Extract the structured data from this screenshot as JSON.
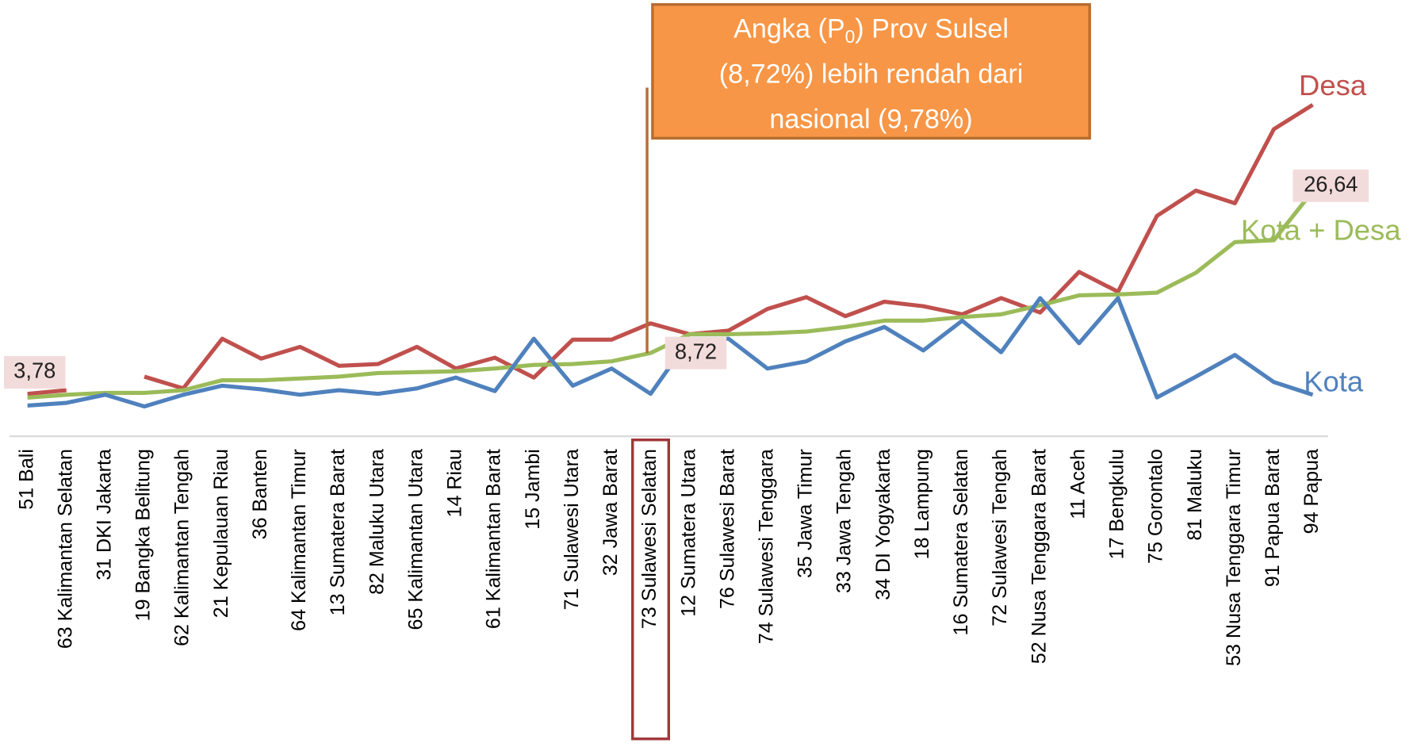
{
  "chart_data": {
    "type": "line",
    "categories": [
      "51 Bali",
      "63 Kalimantan Selatan",
      "31 DKI Jakarta",
      "19 Bangka Belitung",
      "62 Kalimantan Tengah",
      "21 Kepulauan Riau",
      "36 Banten",
      "64 Kalimantan Timur",
      "13 Sumatera Barat",
      "82 Maluku Utara",
      "65 Kalimantan Utara",
      "14 Riau",
      "61 Kalimantan Barat",
      "15 Jambi",
      "71 Sulawesi Utara",
      "32 Jawa Barat",
      "73 Sulawesi Selatan",
      "12 Sumatera Utara",
      "76 Sulawesi Barat",
      "74 Sulawesi Tenggara",
      "35 Jawa Timur",
      "33 Jawa Tengah",
      "34 DI Yogyakarta",
      "18 Lampung",
      "16 Sumatera Selatan",
      "72 Sulawesi Tengah",
      "52 Nusa Tenggara Barat",
      "11 Aceh",
      "17 Bengkulu",
      "75 Gorontalo",
      "81 Maluku",
      "53 Nusa Tenggara Timur",
      "91 Papua Barat",
      "94 Papua"
    ],
    "series": [
      {
        "name": "Desa",
        "color": "#c0504d",
        "values": [
          4.2,
          4.6,
          null,
          6.1,
          4.8,
          10.3,
          8.1,
          9.4,
          7.3,
          7.5,
          9.4,
          7.0,
          8.2,
          6.0,
          10.2,
          10.2,
          12.0,
          10.8,
          11.2,
          13.6,
          14.9,
          12.8,
          14.4,
          13.9,
          13.0,
          14.8,
          13.2,
          17.7,
          15.5,
          23.9,
          26.7,
          25.3,
          33.5,
          36.2
        ]
      },
      {
        "name": "Kota + Desa",
        "color": "#9bbb59",
        "values": [
          3.78,
          4.1,
          4.3,
          4.3,
          4.6,
          5.7,
          5.7,
          5.9,
          6.1,
          6.5,
          6.6,
          6.7,
          7.0,
          7.4,
          7.5,
          7.8,
          8.72,
          10.8,
          10.8,
          10.9,
          11.1,
          11.6,
          12.3,
          12.3,
          12.7,
          13.0,
          14.0,
          15.1,
          15.2,
          15.4,
          17.6,
          21.0,
          21.2,
          26.64
        ],
        "value_labels": [
          "3,78",
          null,
          null,
          null,
          null,
          null,
          null,
          null,
          null,
          null,
          null,
          null,
          null,
          null,
          null,
          null,
          "8,72",
          null,
          null,
          null,
          null,
          null,
          null,
          null,
          null,
          null,
          null,
          null,
          null,
          null,
          null,
          null,
          null,
          "26,64"
        ]
      },
      {
        "name": "Kota",
        "color": "#4f81bd",
        "values": [
          2.9,
          3.2,
          4.1,
          2.8,
          4.1,
          5.1,
          4.7,
          4.1,
          4.6,
          4.2,
          4.8,
          6.0,
          4.5,
          10.3,
          5.1,
          7.0,
          4.2,
          10.3,
          10.3,
          7.0,
          7.8,
          10.0,
          11.6,
          9.0,
          12.3,
          8.8,
          14.8,
          9.8,
          14.8,
          3.8,
          6.1,
          8.5,
          5.5,
          4.1
        ]
      }
    ],
    "highlight_index": 16,
    "annotation": {
      "before": "Angka (P",
      "subscript": "0",
      "after": ") Prov Sulsel",
      "lines": [
        "(8,72%) lebih rendah dari",
        "nasional (9,78%)"
      ]
    }
  }
}
